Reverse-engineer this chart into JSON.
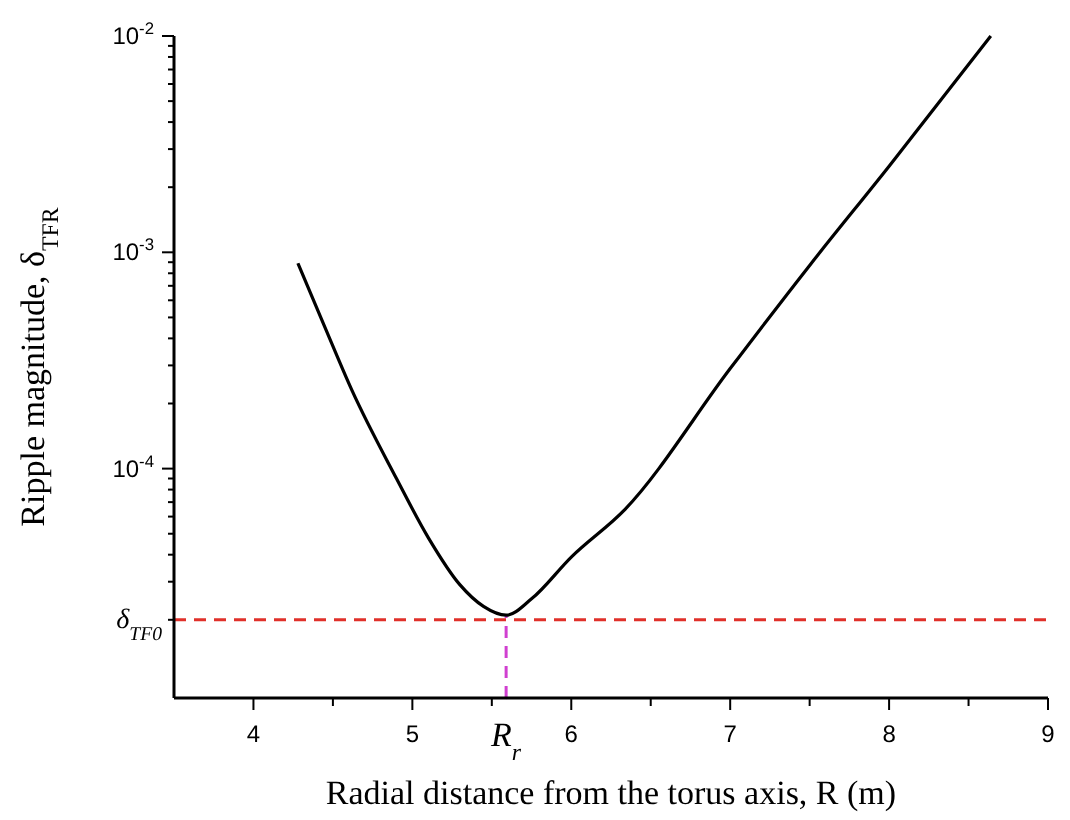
{
  "chart_data": {
    "type": "line",
    "xlabel": "Radial distance from the torus axis, R (m)",
    "ylabel": "Ripple magnitude, δ$_{TFR}$",
    "log": "y",
    "xlim": [
      3.5,
      9
    ],
    "xticks": [
      4,
      {
        "value": 4.5,
        "label": null
      },
      5,
      {
        "value": 5.5,
        "label": null
      },
      6,
      {
        "value": 6.5,
        "label": null
      },
      7,
      {
        "value": 7.5,
        "label": null
      },
      8,
      {
        "value": 8.5,
        "label": null
      },
      9
    ],
    "ylim": [
      8.7e-06,
      0.01
    ],
    "yticks": [
      {
        "value": 2e-05,
        "label": null
      },
      {
        "value": 3e-05,
        "label": null
      },
      {
        "value": 4e-05,
        "label": null
      },
      {
        "value": 5e-05,
        "label": null
      },
      {
        "value": 6e-05,
        "label": null
      },
      {
        "value": 7e-05,
        "label": null
      },
      {
        "value": 8e-05,
        "label": null
      },
      {
        "value": 9e-05,
        "label": null
      },
      {
        "value": 0.0001,
        "label": "10$^{-4}$"
      },
      {
        "value": 0.0002,
        "label": null
      },
      {
        "value": 0.0003,
        "label": null
      },
      {
        "value": 0.0004,
        "label": null
      },
      {
        "value": 0.0005,
        "label": null
      },
      {
        "value": 0.0006,
        "label": null
      },
      {
        "value": 0.0007,
        "label": null
      },
      {
        "value": 0.0008,
        "label": null
      },
      {
        "value": 0.0009,
        "label": null
      },
      {
        "value": 0.001,
        "label": "10$^{-3}$"
      },
      {
        "value": 0.002,
        "label": null
      },
      {
        "value": 0.003,
        "label": null
      },
      {
        "value": 0.004,
        "label": null
      },
      {
        "value": 0.005,
        "label": null
      },
      {
        "value": 0.006,
        "label": null
      },
      {
        "value": 0.007,
        "label": null
      },
      {
        "value": 0.008,
        "label": null
      },
      {
        "value": 0.009,
        "label": null
      },
      {
        "value": 0.01,
        "label": "10$^{-2}$"
      }
    ],
    "x": [
      4.28,
      4.45,
      4.62,
      4.9,
      5.1,
      5.3,
      5.45,
      5.59,
      5.75,
      6.0,
      6.34,
      7.0,
      7.5,
      8.0,
      8.64
    ],
    "series": [
      {
        "color": "#000000",
        "values": [
          0.00089,
          0.00045,
          0.00023,
          9e-05,
          4.8e-05,
          2.9e-05,
          2.3e-05,
          2.1e-05,
          2.5e-05,
          3.9e-05,
          6.5e-05,
          0.00029,
          0.00087,
          0.0025,
          0.01
        ]
      }
    ],
    "ref_lines": [
      {
        "axis": "y",
        "value": 2e-05,
        "label": "δ$_{TF0}$",
        "color": "#e0302a",
        "line_style": "dashed"
      },
      {
        "axis": "x",
        "value": 5.59,
        "label": "R$_{r}$",
        "color": "#d040d0",
        "line_style": "dashed"
      }
    ],
    "grid": false,
    "marker": "none",
    "line_style": "solid"
  }
}
